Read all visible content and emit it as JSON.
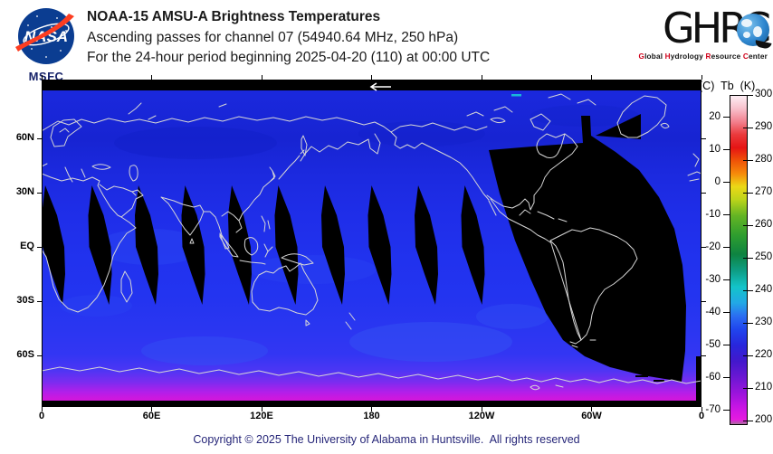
{
  "header": {
    "title": "NOAA-15 AMSU-A Brightness Temperatures",
    "subtitle1": "Ascending passes for channel 07 (54940.64 MHz, 250 hPa)",
    "subtitle2": "For the 24-hour period beginning 2025-04-20 (110) at 00:00 UTC",
    "nasa": {
      "label": "NASA",
      "center": "MSFC"
    },
    "ghrc": {
      "logo_text": "GHRC",
      "tagline_segments": [
        {
          "t": "G",
          "c": "#d0021b"
        },
        {
          "t": "lobal ",
          "c": "#111111"
        },
        {
          "t": "H",
          "c": "#d0021b"
        },
        {
          "t": "ydrology ",
          "c": "#111111"
        },
        {
          "t": "R",
          "c": "#d0021b"
        },
        {
          "t": "esource ",
          "c": "#111111"
        },
        {
          "t": "C",
          "c": "#d0021b"
        },
        {
          "t": "enter",
          "c": "#111111"
        }
      ]
    }
  },
  "map": {
    "lat_labels": [
      {
        "text": "60N",
        "lat": 60
      },
      {
        "text": "30N",
        "lat": 30
      },
      {
        "text": "EQ",
        "lat": 0
      },
      {
        "text": "30S",
        "lat": -30
      },
      {
        "text": "60S",
        "lat": -60
      }
    ],
    "lon_labels": [
      {
        "text": "0",
        "lon": 0
      },
      {
        "text": "60E",
        "lon": 60
      },
      {
        "text": "120E",
        "lon": 120
      },
      {
        "text": "180",
        "lon": 180
      },
      {
        "text": "120W",
        "lon": 240
      },
      {
        "text": "60W",
        "lon": 300
      },
      {
        "text": "0",
        "lon": 360
      }
    ],
    "coastline_color": "#d6d6d6",
    "no_data_color": "#000000",
    "pass_direction_arrow": "left",
    "swath_gap_equator_x": [
      13,
      64.5,
      116,
      167.5,
      219,
      270.5,
      322,
      373.5,
      425,
      476.5
    ]
  },
  "colorbar": {
    "header_c": "(C)",
    "header_tb": "Tb",
    "header_k": "(K)",
    "kelvin_ticks": [
      300,
      290,
      280,
      270,
      260,
      250,
      240,
      230,
      220,
      210,
      200
    ],
    "celsius_ticks": [
      20,
      10,
      0,
      -10,
      -20,
      -30,
      -40,
      -50,
      -60,
      -70
    ],
    "min_k": 200,
    "max_k": 300,
    "gradient": [
      [
        300,
        "#fdeef4"
      ],
      [
        296,
        "#f8c0cc"
      ],
      [
        292,
        "#f2808e"
      ],
      [
        288,
        "#ea3a3c"
      ],
      [
        284,
        "#e61414"
      ],
      [
        280,
        "#ef5208"
      ],
      [
        276,
        "#f68a0a"
      ],
      [
        272,
        "#ecd816"
      ],
      [
        268,
        "#bcd41a"
      ],
      [
        263,
        "#64b424"
      ],
      [
        257,
        "#2f9e2e"
      ],
      [
        251,
        "#0e8341"
      ],
      [
        246,
        "#0e9e85"
      ],
      [
        241,
        "#13c4c9"
      ],
      [
        236,
        "#22a8e6"
      ],
      [
        232,
        "#2b6df2"
      ],
      [
        228,
        "#2046ee"
      ],
      [
        223,
        "#2827dc"
      ],
      [
        218,
        "#4318cc"
      ],
      [
        213,
        "#6c17d3"
      ],
      [
        208,
        "#9c14dc"
      ],
      [
        204,
        "#c715e4"
      ],
      [
        200,
        "#e61ae0"
      ],
      [
        197,
        "#a86f9e"
      ]
    ]
  },
  "footer": {
    "copyright": "Copyright © 2025 The University of Alabama in Huntsville.  All rights reserved"
  },
  "palette": {
    "sea_mid_blue": "#2132ee",
    "sea_north_blue": "#1724d2",
    "antarctic_magenta": "#cf18dd",
    "nasa_blue": "#0b3d91",
    "nasa_red": "#fc3d21",
    "ghrc_red": "#d0021b",
    "copyright_navy": "#252578"
  }
}
